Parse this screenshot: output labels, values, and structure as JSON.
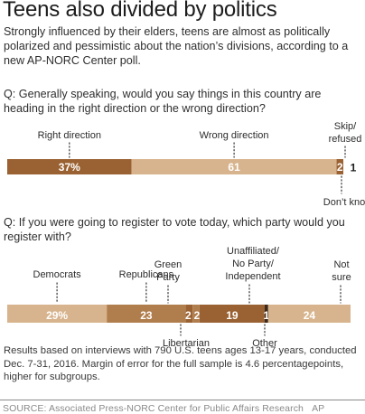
{
  "title": "Teens also divided by politics",
  "intro": "Strongly influenced by their elders, teens are almost as politically polarized and pessimistic about the nation’s divisions, according to a new AP-NORC Center poll.",
  "notes": "Results based on interviews with 790 U.S. teens ages 13-17 years, conducted Dec. 7-31, 2016. Margin of error for the full sample is 4.6 percentagepoints, higher for subgroups.",
  "source": "SOURCE: Associated Press-NORC Center for Public Affairs Research",
  "source_credit": "AP",
  "colors": {
    "dark_brown": "#9a6232",
    "mid_brown": "#b07d4c",
    "light_tan": "#d7b48d",
    "darkest": "#3d2a1a"
  },
  "chart_data": [
    {
      "type": "bar",
      "orientation": "horizontal-stacked",
      "question": "Q: Generally speaking, would you say things in this country are heading in the right direction or the wrong direction?",
      "categories": [
        "Right direction",
        "Wrong direction",
        "Skip/ refused",
        "Don’t know"
      ],
      "values": [
        37,
        61,
        2,
        1
      ],
      "value_labels": [
        "37%",
        "61",
        "2",
        "1"
      ],
      "colors": [
        "#9a6232",
        "#d7b48d",
        "#9a6232",
        "#3d2a1a"
      ]
    },
    {
      "type": "bar",
      "orientation": "horizontal-stacked",
      "question": "Q: If you were going to register to vote today, which party would you register with?",
      "categories": [
        "Democrats",
        "Republicans",
        "Green Party",
        "Libertarian",
        "Unaffiliated/ No Party/ Independent",
        "Other",
        "Not sure"
      ],
      "values": [
        29,
        23,
        2,
        2,
        19,
        1,
        24
      ],
      "value_labels": [
        "29%",
        "23",
        "2",
        "2",
        "19",
        "1",
        "24"
      ],
      "colors": [
        "#d7b48d",
        "#b07d4c",
        "#9a6232",
        "#b07d4c",
        "#9a6232",
        "#3d2a1a",
        "#d7b48d"
      ]
    }
  ]
}
